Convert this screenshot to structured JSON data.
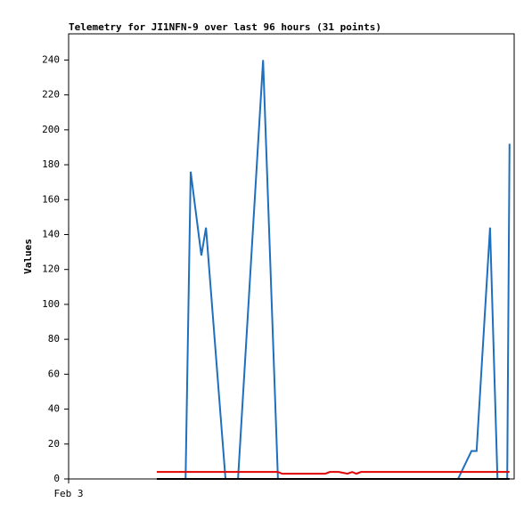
{
  "chart_data": {
    "type": "line",
    "title": "Telemetry for JI1NFN-9 over last 96 hours (31 points)",
    "y_label": "Values",
    "xlim": [
      0,
      96
    ],
    "xticks": [
      {
        "value": 0,
        "label": "Feb 3"
      }
    ],
    "ylim": [
      0,
      255
    ],
    "yticks": [
      0,
      20,
      40,
      60,
      80,
      100,
      120,
      140,
      160,
      180,
      200,
      220,
      240
    ],
    "grid": false,
    "series": [
      {
        "color": "#1f6fbf",
        "x": [
          25.2,
          26.3,
          28.6,
          29.6,
          33.8,
          36.5,
          41.9,
          45.1,
          83.9,
          86.8,
          87.9,
          90.8,
          92.4,
          94.5,
          95.0
        ],
        "values": [
          0,
          176,
          128,
          144,
          0,
          0,
          240,
          0,
          0,
          16,
          16,
          144,
          0,
          0,
          192
        ]
      },
      {
        "color": "#e00000",
        "x": [
          19.0,
          45.1,
          46.0,
          55.3,
          56.3,
          58.2,
          60.1,
          61.1,
          62.0,
          63.0,
          95.0
        ],
        "values": [
          4,
          4,
          3,
          3,
          4,
          4,
          3,
          4,
          3,
          4,
          4
        ]
      },
      {
        "color": "#000000",
        "x": [
          19.0,
          95.0
        ],
        "values": [
          0,
          0
        ]
      }
    ]
  }
}
